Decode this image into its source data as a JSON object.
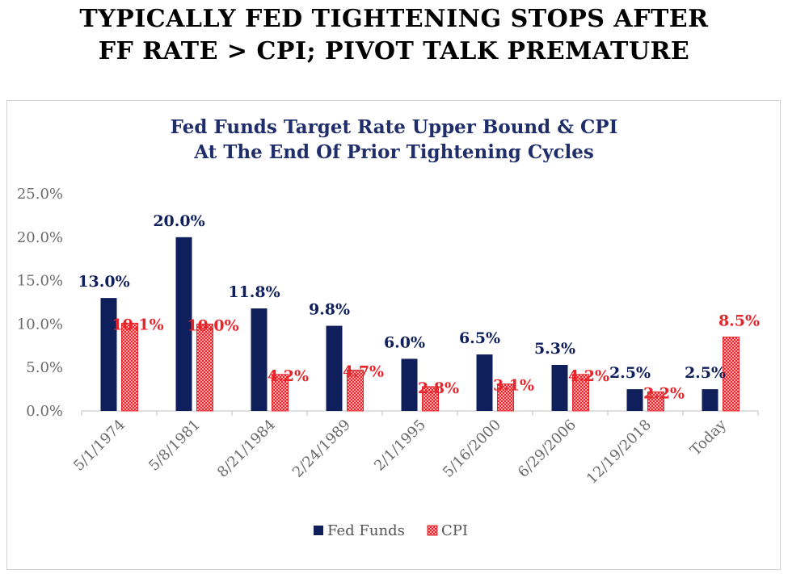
{
  "headline": {
    "line1": "TYPICALLY FED TIGHTENING STOPS AFTER",
    "line2": "FF RATE > CPI; PIVOT TALK PREMATURE"
  },
  "chart_data": {
    "type": "bar",
    "title": [
      "Fed Funds Target Rate Upper Bound & CPI",
      "At The End Of Prior Tightening Cycles"
    ],
    "categories": [
      "5/1/1974",
      "5/8/1981",
      "8/21/1984",
      "2/24/1989",
      "2/1/1995",
      "5/16/2000",
      "6/29/2006",
      "12/19/2018",
      "Today"
    ],
    "series": [
      {
        "name": "Fed Funds",
        "values": [
          13.0,
          20.0,
          11.8,
          9.8,
          6.0,
          6.5,
          5.3,
          2.5,
          2.5
        ],
        "labels": [
          "13.0%",
          "20.0%",
          "11.8%",
          "9.8%",
          "6.0%",
          "6.5%",
          "5.3%",
          "2.5%",
          "2.5%"
        ],
        "color": "#0f1f5c"
      },
      {
        "name": "CPI",
        "values": [
          10.1,
          10.0,
          4.2,
          4.7,
          2.8,
          3.1,
          4.2,
          2.2,
          8.5
        ],
        "labels": [
          "10.1%",
          "10.0%",
          "4.2%",
          "4.7%",
          "2.8%",
          "3.1%",
          "4.2%",
          "2.2%",
          "8.5%"
        ],
        "color": "#e8242b"
      }
    ],
    "yticks": [
      "0.0%",
      "5.0%",
      "10.0%",
      "15.0%",
      "20.0%",
      "25.0%"
    ],
    "ylim": [
      0,
      25
    ],
    "legend_position": "bottom",
    "grid": false
  }
}
